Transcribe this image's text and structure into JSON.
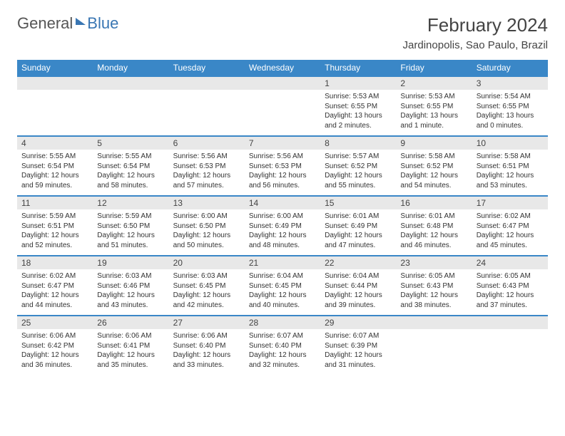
{
  "brand": {
    "part1": "General",
    "part2": "Blue"
  },
  "title": "February 2024",
  "location": "Jardinopolis, Sao Paulo, Brazil",
  "colors": {
    "header_bg": "#3a87c7",
    "header_text": "#ffffff",
    "daynum_bg": "#e8e8e8",
    "row_border": "#3a87c7",
    "text": "#333333",
    "brand_gray": "#555555",
    "brand_blue": "#3976b3",
    "page_bg": "#ffffff"
  },
  "typography": {
    "title_fontsize": 26,
    "location_fontsize": 15,
    "dayheader_fontsize": 12,
    "daynum_fontsize": 12,
    "body_fontsize": 10
  },
  "day_headers": [
    "Sunday",
    "Monday",
    "Tuesday",
    "Wednesday",
    "Thursday",
    "Friday",
    "Saturday"
  ],
  "weeks": [
    [
      null,
      null,
      null,
      null,
      {
        "n": "1",
        "sr": "Sunrise: 5:53 AM",
        "ss": "Sunset: 6:55 PM",
        "dl": "Daylight: 13 hours and 2 minutes."
      },
      {
        "n": "2",
        "sr": "Sunrise: 5:53 AM",
        "ss": "Sunset: 6:55 PM",
        "dl": "Daylight: 13 hours and 1 minute."
      },
      {
        "n": "3",
        "sr": "Sunrise: 5:54 AM",
        "ss": "Sunset: 6:55 PM",
        "dl": "Daylight: 13 hours and 0 minutes."
      }
    ],
    [
      {
        "n": "4",
        "sr": "Sunrise: 5:55 AM",
        "ss": "Sunset: 6:54 PM",
        "dl": "Daylight: 12 hours and 59 minutes."
      },
      {
        "n": "5",
        "sr": "Sunrise: 5:55 AM",
        "ss": "Sunset: 6:54 PM",
        "dl": "Daylight: 12 hours and 58 minutes."
      },
      {
        "n": "6",
        "sr": "Sunrise: 5:56 AM",
        "ss": "Sunset: 6:53 PM",
        "dl": "Daylight: 12 hours and 57 minutes."
      },
      {
        "n": "7",
        "sr": "Sunrise: 5:56 AM",
        "ss": "Sunset: 6:53 PM",
        "dl": "Daylight: 12 hours and 56 minutes."
      },
      {
        "n": "8",
        "sr": "Sunrise: 5:57 AM",
        "ss": "Sunset: 6:52 PM",
        "dl": "Daylight: 12 hours and 55 minutes."
      },
      {
        "n": "9",
        "sr": "Sunrise: 5:58 AM",
        "ss": "Sunset: 6:52 PM",
        "dl": "Daylight: 12 hours and 54 minutes."
      },
      {
        "n": "10",
        "sr": "Sunrise: 5:58 AM",
        "ss": "Sunset: 6:51 PM",
        "dl": "Daylight: 12 hours and 53 minutes."
      }
    ],
    [
      {
        "n": "11",
        "sr": "Sunrise: 5:59 AM",
        "ss": "Sunset: 6:51 PM",
        "dl": "Daylight: 12 hours and 52 minutes."
      },
      {
        "n": "12",
        "sr": "Sunrise: 5:59 AM",
        "ss": "Sunset: 6:50 PM",
        "dl": "Daylight: 12 hours and 51 minutes."
      },
      {
        "n": "13",
        "sr": "Sunrise: 6:00 AM",
        "ss": "Sunset: 6:50 PM",
        "dl": "Daylight: 12 hours and 50 minutes."
      },
      {
        "n": "14",
        "sr": "Sunrise: 6:00 AM",
        "ss": "Sunset: 6:49 PM",
        "dl": "Daylight: 12 hours and 48 minutes."
      },
      {
        "n": "15",
        "sr": "Sunrise: 6:01 AM",
        "ss": "Sunset: 6:49 PM",
        "dl": "Daylight: 12 hours and 47 minutes."
      },
      {
        "n": "16",
        "sr": "Sunrise: 6:01 AM",
        "ss": "Sunset: 6:48 PM",
        "dl": "Daylight: 12 hours and 46 minutes."
      },
      {
        "n": "17",
        "sr": "Sunrise: 6:02 AM",
        "ss": "Sunset: 6:47 PM",
        "dl": "Daylight: 12 hours and 45 minutes."
      }
    ],
    [
      {
        "n": "18",
        "sr": "Sunrise: 6:02 AM",
        "ss": "Sunset: 6:47 PM",
        "dl": "Daylight: 12 hours and 44 minutes."
      },
      {
        "n": "19",
        "sr": "Sunrise: 6:03 AM",
        "ss": "Sunset: 6:46 PM",
        "dl": "Daylight: 12 hours and 43 minutes."
      },
      {
        "n": "20",
        "sr": "Sunrise: 6:03 AM",
        "ss": "Sunset: 6:45 PM",
        "dl": "Daylight: 12 hours and 42 minutes."
      },
      {
        "n": "21",
        "sr": "Sunrise: 6:04 AM",
        "ss": "Sunset: 6:45 PM",
        "dl": "Daylight: 12 hours and 40 minutes."
      },
      {
        "n": "22",
        "sr": "Sunrise: 6:04 AM",
        "ss": "Sunset: 6:44 PM",
        "dl": "Daylight: 12 hours and 39 minutes."
      },
      {
        "n": "23",
        "sr": "Sunrise: 6:05 AM",
        "ss": "Sunset: 6:43 PM",
        "dl": "Daylight: 12 hours and 38 minutes."
      },
      {
        "n": "24",
        "sr": "Sunrise: 6:05 AM",
        "ss": "Sunset: 6:43 PM",
        "dl": "Daylight: 12 hours and 37 minutes."
      }
    ],
    [
      {
        "n": "25",
        "sr": "Sunrise: 6:06 AM",
        "ss": "Sunset: 6:42 PM",
        "dl": "Daylight: 12 hours and 36 minutes."
      },
      {
        "n": "26",
        "sr": "Sunrise: 6:06 AM",
        "ss": "Sunset: 6:41 PM",
        "dl": "Daylight: 12 hours and 35 minutes."
      },
      {
        "n": "27",
        "sr": "Sunrise: 6:06 AM",
        "ss": "Sunset: 6:40 PM",
        "dl": "Daylight: 12 hours and 33 minutes."
      },
      {
        "n": "28",
        "sr": "Sunrise: 6:07 AM",
        "ss": "Sunset: 6:40 PM",
        "dl": "Daylight: 12 hours and 32 minutes."
      },
      {
        "n": "29",
        "sr": "Sunrise: 6:07 AM",
        "ss": "Sunset: 6:39 PM",
        "dl": "Daylight: 12 hours and 31 minutes."
      },
      null,
      null
    ]
  ]
}
